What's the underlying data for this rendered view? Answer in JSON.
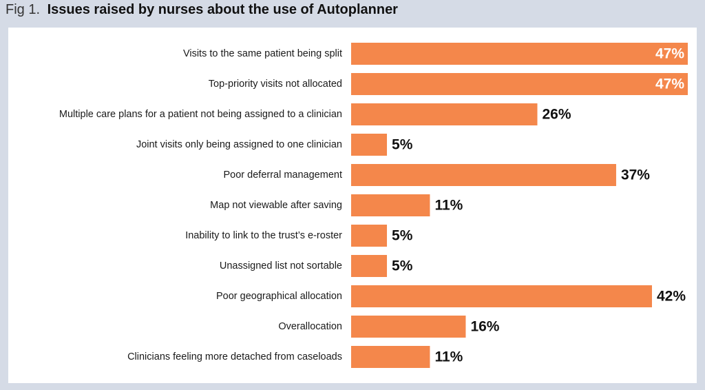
{
  "chart_data": {
    "type": "bar",
    "orientation": "horizontal",
    "figure_label": "Fig 1.",
    "title": "Issues raised by nurses about the use of Autoplanner",
    "categories": [
      "Visits to the same patient being split",
      "Top-priority visits not allocated",
      "Multiple care plans for a patient not being assigned to a clinician",
      "Joint visits only being assigned to one clinician",
      "Poor deferral management",
      "Map not viewable after saving",
      "Inability to link to the trust’s e-roster",
      "Unassigned list not sortable",
      "Poor geographical allocation",
      "Overallocation",
      "Clinicians feeling more detached from caseloads"
    ],
    "values": [
      47,
      47,
      26,
      5,
      37,
      11,
      5,
      5,
      42,
      16,
      11
    ],
    "value_labels": [
      "47%",
      "47%",
      "26%",
      "5%",
      "37%",
      "11%",
      "5%",
      "5%",
      "42%",
      "16%",
      "11%"
    ],
    "color": "#f4874b"
  }
}
